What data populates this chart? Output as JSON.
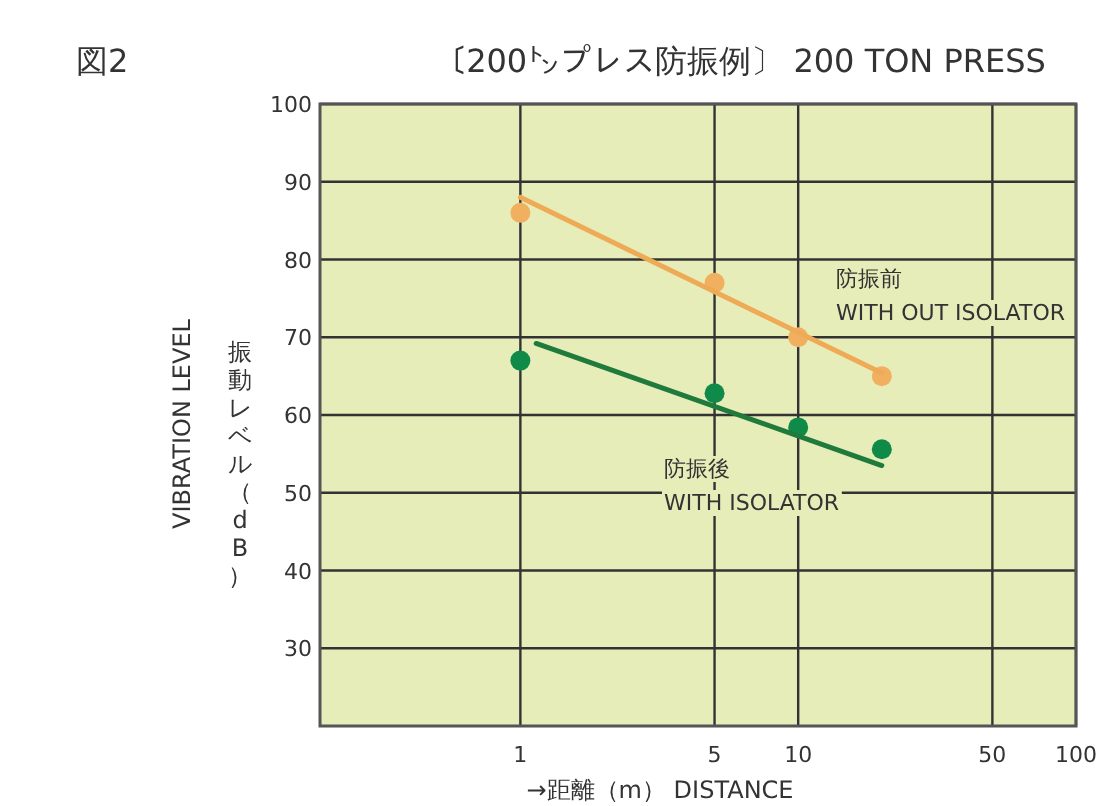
{
  "chart_data": {
    "type": "scatter",
    "title": "〔200㌧プレス防振例〕 200 TON PRESS",
    "xlabel": "→距離（m） DISTANCE",
    "ylabel": "VIBRATION LEVEL",
    "annotations": [
      "図2",
      "振動レベル（dB）",
      "防振前",
      "WITH OUT ISOLATOR",
      "防振後",
      "WITH ISOLATOR"
    ],
    "log": "x",
    "xlim": [
      0.19,
      100
    ],
    "xticks": [
      1,
      5,
      10,
      50,
      100
    ],
    "ylim": [
      20,
      100
    ],
    "yticks": [
      30,
      40,
      50,
      60,
      70,
      80,
      90,
      100
    ],
    "grid": true,
    "series": [
      {
        "type": "scatter",
        "marker": "circle",
        "color": "#f0b060",
        "x": [
          1,
          5,
          10,
          20
        ],
        "values": [
          86,
          77,
          70,
          65
        ]
      },
      {
        "type": "line",
        "color": "#eeaa55",
        "x": [
          1,
          20
        ],
        "values": [
          88,
          65.4
        ]
      },
      {
        "type": "scatter",
        "marker": "circle",
        "color": "#108a48",
        "x": [
          1,
          5,
          10,
          20
        ],
        "values": [
          67,
          62.8,
          58.4,
          55.6
        ]
      },
      {
        "type": "line",
        "color": "#1f7a3c",
        "x": [
          1.14,
          20
        ],
        "values": [
          69.2,
          53.5
        ]
      }
    ]
  }
}
